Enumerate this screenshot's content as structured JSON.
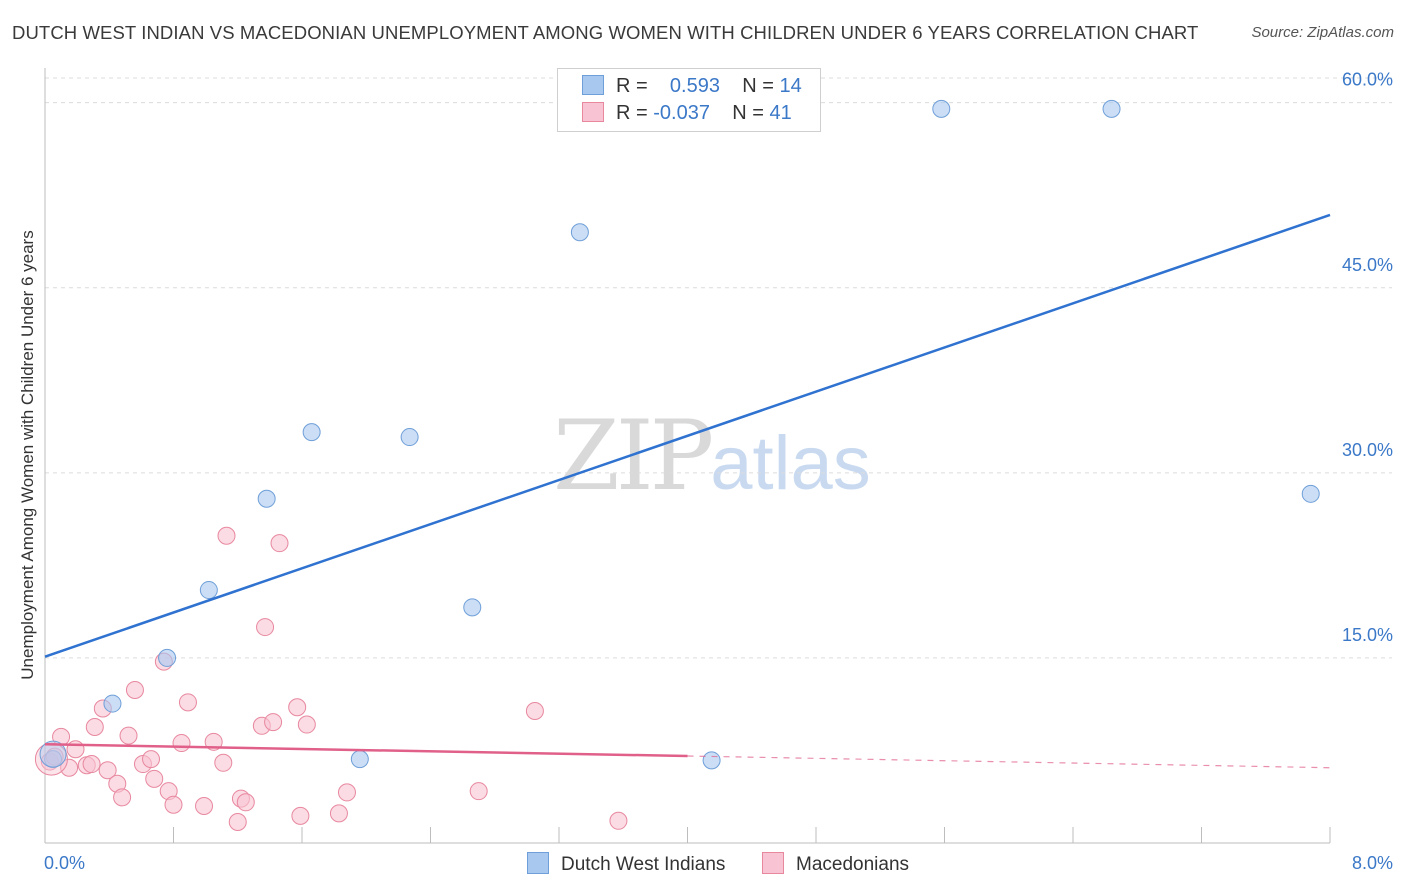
{
  "title": "DUTCH WEST INDIAN VS MACEDONIAN UNEMPLOYMENT AMONG WOMEN WITH CHILDREN UNDER 6 YEARS CORRELATION CHART",
  "source": "Source: ZipAtlas.com",
  "watermark": {
    "zip": "ZIP",
    "atlas": "atlas"
  },
  "legend": {
    "rows": [
      {
        "r_label": "R =",
        "r_value": "0.593",
        "n_label": "N =",
        "n_value": "14",
        "color": "#a9c8f0",
        "border": "#6f9fd8"
      },
      {
        "r_label": "R =",
        "r_value": "-0.037",
        "n_label": "N =",
        "n_value": "41",
        "color": "#f8c3d2",
        "border": "#e8889f"
      }
    ]
  },
  "bottom_legend": [
    {
      "label": "Dutch West Indians",
      "color": "#a9c8f0",
      "border": "#6f9fd8"
    },
    {
      "label": "Macedonians",
      "color": "#f8c3d2",
      "border": "#e8889f"
    }
  ],
  "chart_data": {
    "type": "scatter",
    "title": "DUTCH WEST INDIAN VS MACEDONIAN UNEMPLOYMENT AMONG WOMEN WITH CHILDREN UNDER 6 YEARS CORRELATION CHART",
    "xlabel": "",
    "ylabel": "Unemployment Among Women with Children Under 6 years",
    "xlim": [
      0,
      8
    ],
    "ylim": [
      0,
      62
    ],
    "x_tick_labels": [
      "0.0%",
      "8.0%"
    ],
    "y_ticks": [
      15,
      30,
      45,
      60
    ],
    "y_tick_labels": [
      "15.0%",
      "30.0%",
      "45.0%",
      "60.0%"
    ],
    "grid": true,
    "series": [
      {
        "name": "Dutch West Indians",
        "color": "#a9c8f0",
        "stroke": "#6f9fd8",
        "line_color": "#2f72d0",
        "trend": {
          "x": [
            0.0,
            8.0
          ],
          "y": [
            15.1,
            50.9
          ],
          "dashed_from": null
        },
        "points": [
          {
            "x": 0.05,
            "y": 6.8
          },
          {
            "x": 0.42,
            "y": 11.3
          },
          {
            "x": 0.76,
            "y": 15.0
          },
          {
            "x": 1.02,
            "y": 20.5
          },
          {
            "x": 1.38,
            "y": 27.9
          },
          {
            "x": 1.66,
            "y": 33.3
          },
          {
            "x": 1.96,
            "y": 6.8
          },
          {
            "x": 2.27,
            "y": 32.9
          },
          {
            "x": 2.66,
            "y": 19.1
          },
          {
            "x": 3.33,
            "y": 49.5
          },
          {
            "x": 4.15,
            "y": 6.7
          },
          {
            "x": 5.58,
            "y": 59.5
          },
          {
            "x": 6.64,
            "y": 59.5
          },
          {
            "x": 7.88,
            "y": 28.3
          }
        ]
      },
      {
        "name": "Macedonians",
        "color": "#f8c3d2",
        "stroke": "#e8889f",
        "line_color": "#e0608a",
        "trend": {
          "x": [
            0.0,
            8.0
          ],
          "y": [
            8.0,
            6.1
          ],
          "dashed_from": 4.0
        },
        "points": [
          {
            "x": 0.03,
            "y": 6.6
          },
          {
            "x": 0.06,
            "y": 7.0
          },
          {
            "x": 0.1,
            "y": 8.6
          },
          {
            "x": 0.15,
            "y": 6.1
          },
          {
            "x": 0.19,
            "y": 7.6
          },
          {
            "x": 0.26,
            "y": 6.3
          },
          {
            "x": 0.29,
            "y": 6.4
          },
          {
            "x": 0.31,
            "y": 9.4
          },
          {
            "x": 0.36,
            "y": 10.9
          },
          {
            "x": 0.39,
            "y": 5.9
          },
          {
            "x": 0.45,
            "y": 4.8
          },
          {
            "x": 0.48,
            "y": 3.7
          },
          {
            "x": 0.52,
            "y": 8.7
          },
          {
            "x": 0.56,
            "y": 12.4
          },
          {
            "x": 0.61,
            "y": 6.4
          },
          {
            "x": 0.66,
            "y": 6.8
          },
          {
            "x": 0.68,
            "y": 5.2
          },
          {
            "x": 0.74,
            "y": 14.7
          },
          {
            "x": 0.77,
            "y": 4.2
          },
          {
            "x": 0.8,
            "y": 3.1
          },
          {
            "x": 0.85,
            "y": 8.1
          },
          {
            "x": 0.89,
            "y": 11.4
          },
          {
            "x": 0.99,
            "y": 3.0
          },
          {
            "x": 1.05,
            "y": 8.2
          },
          {
            "x": 1.11,
            "y": 6.5
          },
          {
            "x": 1.13,
            "y": 24.9
          },
          {
            "x": 1.2,
            "y": 1.7
          },
          {
            "x": 1.22,
            "y": 3.6
          },
          {
            "x": 1.25,
            "y": 3.3
          },
          {
            "x": 1.35,
            "y": 9.5
          },
          {
            "x": 1.37,
            "y": 17.5
          },
          {
            "x": 1.42,
            "y": 9.8
          },
          {
            "x": 1.46,
            "y": 24.3
          },
          {
            "x": 1.57,
            "y": 11.0
          },
          {
            "x": 1.59,
            "y": 2.2
          },
          {
            "x": 1.63,
            "y": 9.6
          },
          {
            "x": 1.83,
            "y": 2.4
          },
          {
            "x": 1.88,
            "y": 4.1
          },
          {
            "x": 2.7,
            "y": 4.2
          },
          {
            "x": 3.05,
            "y": 10.7
          },
          {
            "x": 3.57,
            "y": 1.8
          }
        ]
      }
    ]
  }
}
